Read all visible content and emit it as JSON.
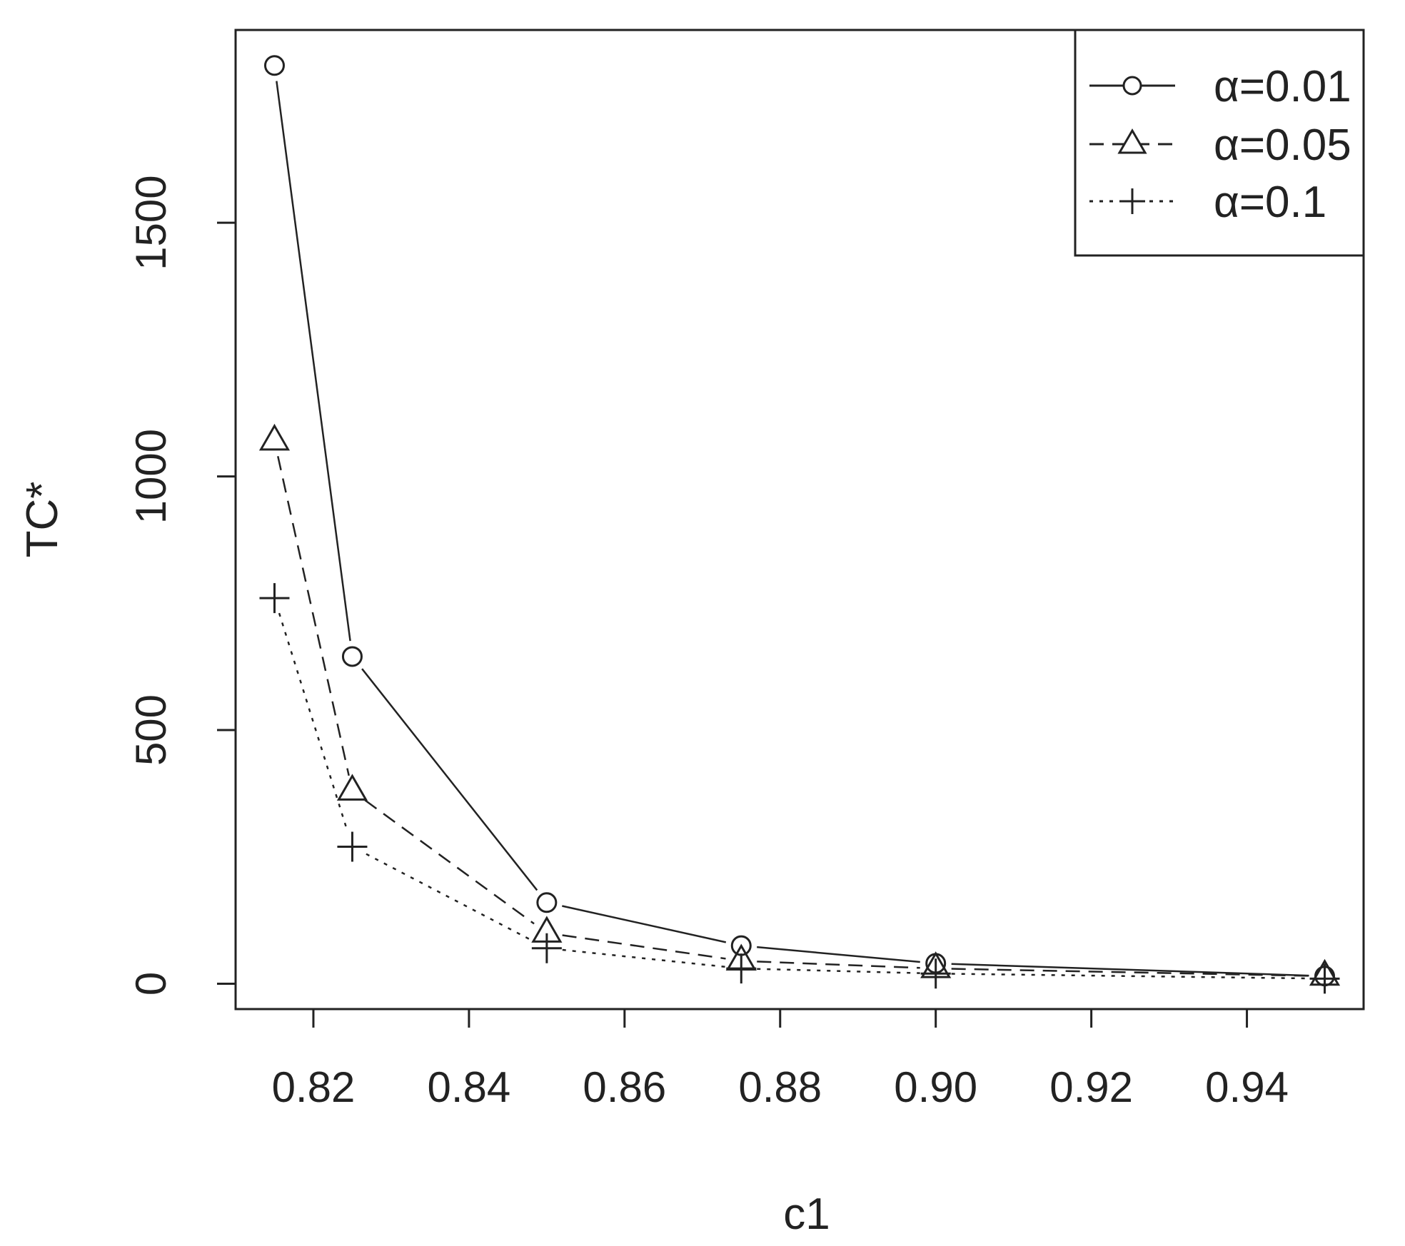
{
  "chart_data": {
    "type": "line",
    "title": "",
    "xlabel": "c1",
    "ylabel": "TC*",
    "x": [
      0.815,
      0.825,
      0.85,
      0.875,
      0.9,
      0.95
    ],
    "xlim": [
      0.81,
      0.955
    ],
    "ylim": [
      -50,
      1880
    ],
    "x_ticks": [
      0.82,
      0.84,
      0.86,
      0.88,
      0.9,
      0.92,
      0.94
    ],
    "x_tick_labels": [
      "0.82",
      "0.84",
      "0.86",
      "0.88",
      "0.90",
      "0.92",
      "0.94"
    ],
    "y_ticks": [
      0,
      500,
      1000,
      1500
    ],
    "y_tick_labels": [
      "0",
      "500",
      "1000",
      "1500"
    ],
    "grid": false,
    "legend_position": "top-right",
    "series": [
      {
        "name": "α=0.01",
        "marker": "circle",
        "line_style": "solid",
        "values": [
          1810,
          645,
          160,
          75,
          40,
          15
        ]
      },
      {
        "name": "α=0.05",
        "marker": "triangle",
        "line_style": "dashed",
        "values": [
          1070,
          380,
          100,
          45,
          30,
          15
        ]
      },
      {
        "name": "α=0.1",
        "marker": "plus",
        "line_style": "dotted",
        "values": [
          760,
          270,
          70,
          30,
          20,
          10
        ]
      }
    ]
  }
}
